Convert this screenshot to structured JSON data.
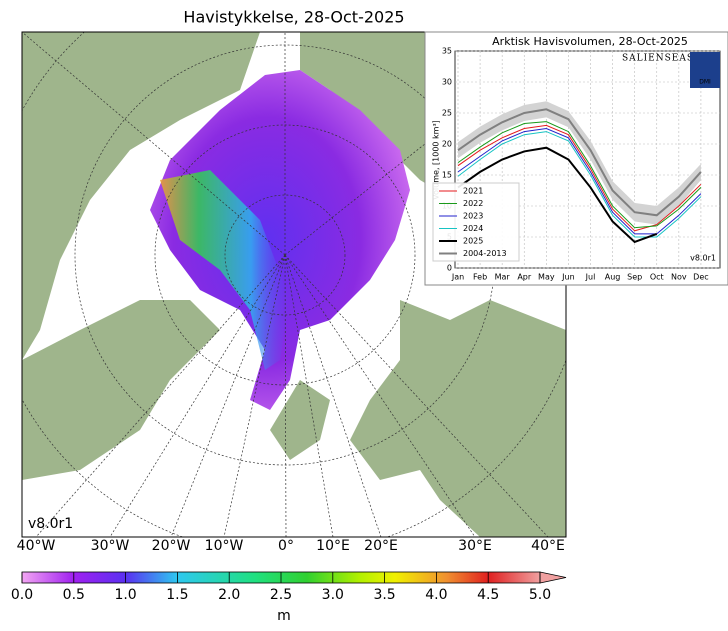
{
  "title": "Havistykkelse, 28-Oct-2025",
  "version": "v8.0r1",
  "lon_labels": [
    "40°W",
    "30°W",
    "20°W",
    "10°W",
    "0°",
    "10°E",
    "20°E",
    "30°E",
    "40°E"
  ],
  "colorbar": {
    "lim": [
      0,
      5
    ],
    "ticks": [
      {
        "value": 0,
        "label": "0.0"
      },
      {
        "value": 0.5,
        "label": "0.5"
      },
      {
        "value": 1,
        "label": "1.0"
      },
      {
        "value": 1.5,
        "label": "1.5"
      },
      {
        "value": 2,
        "label": "2.0"
      },
      {
        "value": 2.5,
        "label": "2.5"
      },
      {
        "value": 3,
        "label": "3.0"
      },
      {
        "value": 3.5,
        "label": "3.5"
      },
      {
        "value": 4,
        "label": "4.0"
      },
      {
        "value": 4.5,
        "label": "4.5"
      },
      {
        "value": 5,
        "label": "5.0"
      }
    ],
    "unit": "m"
  },
  "chart_data": {
    "type": "line",
    "title": "Arktisk Havisvolumen, 28-Oct-2025",
    "y_label": "Volume, [1000 km³]",
    "version": "v8.0r1",
    "logo": "SALIENSEAS",
    "agency": "DMI",
    "categories": [
      "Jan",
      "Feb",
      "Mar",
      "Apr",
      "May",
      "Jun",
      "Jul",
      "Aug",
      "Sep",
      "Oct",
      "Nov",
      "Dec"
    ],
    "ylim": [
      0,
      35
    ],
    "yticks": [
      0,
      5,
      10,
      15,
      20,
      25,
      30,
      35
    ],
    "grid": true,
    "legend": "lower left",
    "series": [
      {
        "name": "2021",
        "color": "#e41a1c",
        "values": [
          16.5,
          19,
          21,
          22.5,
          23,
          21.5,
          16,
          9.5,
          6,
          7,
          10,
          13.5
        ]
      },
      {
        "name": "2022",
        "color": "#1a9a1a",
        "values": [
          17,
          19.5,
          21.8,
          23.3,
          23.6,
          22,
          16.5,
          10,
          6.5,
          6.8,
          9.5,
          13
        ]
      },
      {
        "name": "2023",
        "color": "#2222cc",
        "values": [
          15.5,
          18,
          20.5,
          22,
          22.5,
          21,
          15.5,
          9,
          5.5,
          5.5,
          8.5,
          12
        ]
      },
      {
        "name": "2024",
        "color": "#17c3c3",
        "values": [
          14.8,
          17.5,
          20,
          21.5,
          22,
          20.5,
          15,
          8.5,
          5,
          5,
          8,
          11.5
        ]
      },
      {
        "name": "2025",
        "color": "#000000",
        "values": [
          13,
          15.5,
          17.5,
          18.8,
          19.4,
          17.5,
          13,
          7.5,
          4.2,
          5.5,
          null,
          null
        ]
      },
      {
        "name": "2004-2013",
        "color": "#808080",
        "values": [
          19,
          21.5,
          23.5,
          25,
          25.6,
          24,
          19,
          12.5,
          9,
          8.5,
          11.5,
          15.5
        ],
        "low": [
          17.7,
          20.2,
          22.2,
          23.7,
          24.3,
          22.7,
          17.5,
          11,
          7.5,
          7,
          10,
          14.2
        ],
        "high": [
          20.3,
          22.8,
          24.8,
          26.3,
          26.9,
          25.3,
          20.5,
          14,
          10.5,
          10,
          13,
          16.8
        ]
      }
    ]
  }
}
